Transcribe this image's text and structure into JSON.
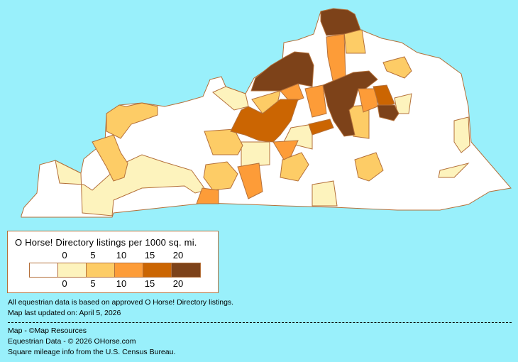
{
  "legend": {
    "title": "O Horse! Directory listings per 1000 sq. mi.",
    "ticks": [
      "0",
      "5",
      "10",
      "15",
      "20"
    ],
    "colors": [
      "#ffffff",
      "#fdf3bd",
      "#fdcc66",
      "#fd9c38",
      "#cb6502",
      "#7d4219"
    ],
    "border_color": "#b4703a"
  },
  "notes": {
    "data_basis": "All equestrian data is based on approved O Horse! Directory listings.",
    "updated": "Map last updated on: April 5, 2026",
    "credit_map": "Map - ©Map Resources",
    "credit_data": "Equestrian Data - © 2026 OHorse.com",
    "credit_census": "Square mileage info from the U.S. Census Bureau."
  },
  "map": {
    "state": "Kentucky",
    "background": "#99f0fb"
  }
}
